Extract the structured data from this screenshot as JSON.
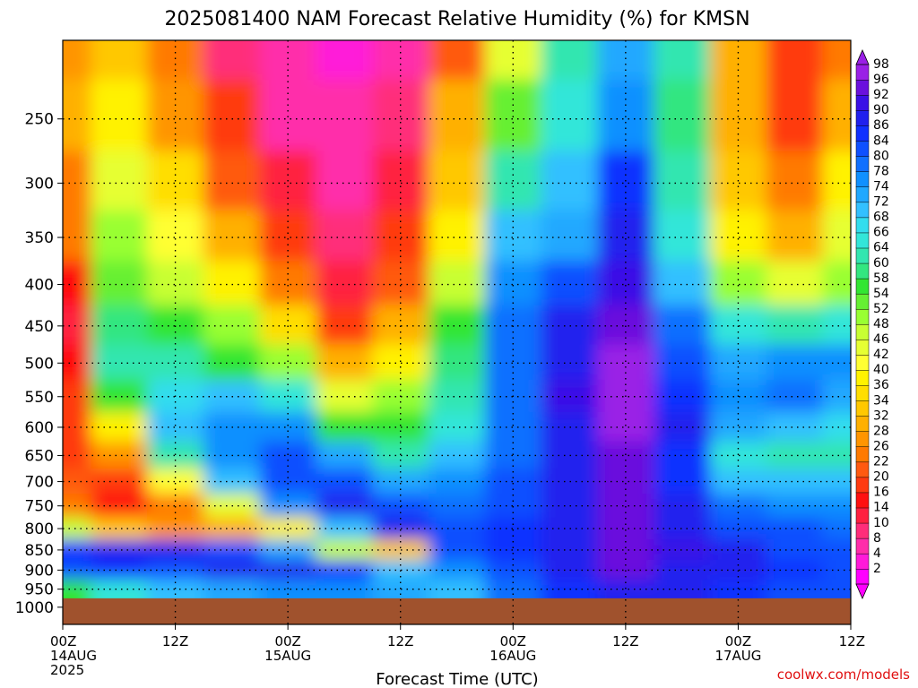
{
  "chart_data": {
    "type": "heatmap",
    "title": "2025081400 NAM Forecast Relative Humidity (%) for KMSN",
    "xlabel": "Forecast Time (UTC)",
    "ylabel": "",
    "credit": "coolwx.com/models",
    "y_scale": "log",
    "y_inverted": true,
    "ylim": [
      1050,
      200
    ],
    "y_ticks": [
      250,
      300,
      350,
      400,
      450,
      500,
      550,
      600,
      650,
      700,
      750,
      800,
      850,
      900,
      950,
      1000
    ],
    "x_hours": [
      0,
      12,
      24,
      36,
      48,
      60,
      72,
      84
    ],
    "x_tick_labels": [
      {
        "time": "00Z",
        "date": "14AUG",
        "year": "2025"
      },
      {
        "time": "12Z",
        "date": "",
        "year": ""
      },
      {
        "time": "00Z",
        "date": "15AUG",
        "year": ""
      },
      {
        "time": "12Z",
        "date": "",
        "year": ""
      },
      {
        "time": "00Z",
        "date": "16AUG",
        "year": ""
      },
      {
        "time": "12Z",
        "date": "",
        "year": ""
      },
      {
        "time": "00Z",
        "date": "17AUG",
        "year": ""
      },
      {
        "time": "12Z",
        "date": "",
        "year": ""
      }
    ],
    "colorbar_levels": [
      2,
      4,
      8,
      10,
      14,
      16,
      20,
      22,
      26,
      28,
      32,
      34,
      36,
      40,
      42,
      46,
      48,
      52,
      54,
      58,
      60,
      64,
      66,
      68,
      72,
      74,
      78,
      80,
      84,
      86,
      90,
      92,
      96,
      98
    ],
    "colorbar_colors": [
      "#ff00ff",
      "#ff1ad9",
      "#ff2daa",
      "#ff2d7a",
      "#ff2040",
      "#ff1010",
      "#ff3a10",
      "#ff5a10",
      "#ff7a00",
      "#ff9500",
      "#ffb000",
      "#ffc800",
      "#ffde00",
      "#fff200",
      "#ffff33",
      "#e6ff33",
      "#c8ff33",
      "#99ff33",
      "#66f033",
      "#33e633",
      "#33e680",
      "#33e6b0",
      "#33e6d9",
      "#33ddee",
      "#33c0ff",
      "#20a8ff",
      "#1090ff",
      "#1070ff",
      "#0f50ff",
      "#1030ff",
      "#2020ee",
      "#3a10e6",
      "#6a10dd",
      "#9a20e6"
    ],
    "ground_color": "#a0522d",
    "surface_pressure": 975,
    "grid": true,
    "humidity_hours": [
      0,
      6,
      12,
      18,
      24,
      30,
      36,
      42,
      48,
      54,
      60,
      66,
      72,
      78,
      84
    ],
    "humidity_levels": [
      200,
      250,
      300,
      350,
      400,
      450,
      500,
      550,
      600,
      650,
      700,
      750,
      800,
      850,
      900,
      950
    ],
    "humidity_rh": [
      [
        28,
        34,
        24,
        10,
        6,
        4,
        6,
        22,
        46,
        62,
        74,
        64,
        30,
        18,
        26
      ],
      [
        30,
        40,
        28,
        18,
        8,
        6,
        10,
        30,
        54,
        66,
        78,
        60,
        30,
        20,
        32
      ],
      [
        26,
        46,
        36,
        22,
        12,
        8,
        14,
        34,
        62,
        70,
        86,
        64,
        34,
        24,
        38
      ],
      [
        24,
        50,
        42,
        30,
        18,
        10,
        18,
        40,
        70,
        74,
        88,
        66,
        40,
        32,
        44
      ],
      [
        16,
        54,
        48,
        38,
        24,
        14,
        22,
        48,
        76,
        82,
        92,
        72,
        50,
        44,
        50
      ],
      [
        12,
        60,
        56,
        50,
        36,
        20,
        30,
        56,
        80,
        88,
        96,
        80,
        66,
        64,
        66
      ],
      [
        16,
        62,
        62,
        58,
        52,
        30,
        40,
        60,
        80,
        90,
        98,
        84,
        74,
        76,
        76
      ],
      [
        18,
        58,
        68,
        70,
        66,
        44,
        50,
        62,
        80,
        92,
        98,
        86,
        78,
        80,
        74
      ],
      [
        20,
        40,
        70,
        76,
        78,
        58,
        56,
        66,
        80,
        90,
        98,
        88,
        74,
        70,
        68
      ],
      [
        18,
        28,
        62,
        78,
        82,
        74,
        64,
        72,
        80,
        88,
        96,
        86,
        66,
        64,
        62
      ],
      [
        22,
        20,
        42,
        70,
        84,
        84,
        74,
        76,
        82,
        88,
        96,
        86,
        70,
        72,
        72
      ],
      [
        24,
        16,
        24,
        44,
        76,
        88,
        82,
        80,
        84,
        90,
        96,
        88,
        80,
        78,
        78
      ],
      [
        48,
        34,
        28,
        30,
        40,
        72,
        88,
        84,
        86,
        90,
        96,
        90,
        84,
        82,
        80
      ],
      [
        86,
        90,
        88,
        84,
        74,
        48,
        34,
        82,
        86,
        90,
        96,
        92,
        88,
        84,
        82
      ],
      [
        84,
        86,
        84,
        88,
        88,
        86,
        72,
        76,
        84,
        88,
        94,
        90,
        90,
        86,
        84
      ],
      [
        58,
        66,
        70,
        74,
        76,
        78,
        74,
        72,
        80,
        86,
        90,
        88,
        86,
        84,
        82
      ]
    ]
  },
  "colorbar_labels": [
    "98",
    "96",
    "92",
    "90",
    "86",
    "84",
    "80",
    "78",
    "74",
    "72",
    "68",
    "66",
    "64",
    "60",
    "58",
    "54",
    "52",
    "48",
    "46",
    "42",
    "40",
    "36",
    "34",
    "32",
    "28",
    "26",
    "22",
    "20",
    "16",
    "14",
    "10",
    "8",
    "4",
    "2"
  ]
}
